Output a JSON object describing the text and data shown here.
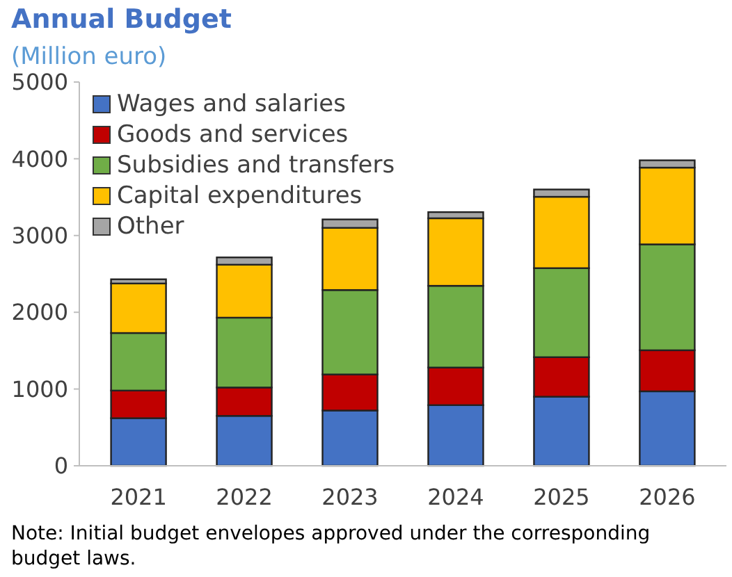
{
  "chart_data": {
    "type": "bar",
    "title": "Annual Budget",
    "subtitle": "(Million euro)",
    "categories": [
      "2021",
      "2022",
      "2023",
      "2024",
      "2025",
      "2026"
    ],
    "stacked": true,
    "series": [
      {
        "name": "Wages and salaries",
        "color": "#4472c4",
        "values": [
          620,
          650,
          720,
          790,
          900,
          970
        ]
      },
      {
        "name": "Goods and services",
        "color": "#c00000",
        "values": [
          360,
          370,
          470,
          490,
          515,
          535
        ]
      },
      {
        "name": "Subsidies and transfers",
        "color": "#70ad47",
        "values": [
          750,
          910,
          1100,
          1065,
          1160,
          1380
        ]
      },
      {
        "name": "Capital expenditures",
        "color": "#ffc000",
        "values": [
          645,
          690,
          810,
          880,
          930,
          1000
        ]
      },
      {
        "name": "Other",
        "color": "#a5a5a5",
        "values": [
          55,
          95,
          110,
          80,
          95,
          95
        ]
      }
    ],
    "ylim": [
      0,
      5000
    ],
    "yticks": [
      0,
      1000,
      2000,
      3000,
      4000,
      5000
    ],
    "grid": false,
    "legend": "top left",
    "annotations": [
      "Note: Initial budget envelopes approved under the corresponding budget laws."
    ]
  }
}
